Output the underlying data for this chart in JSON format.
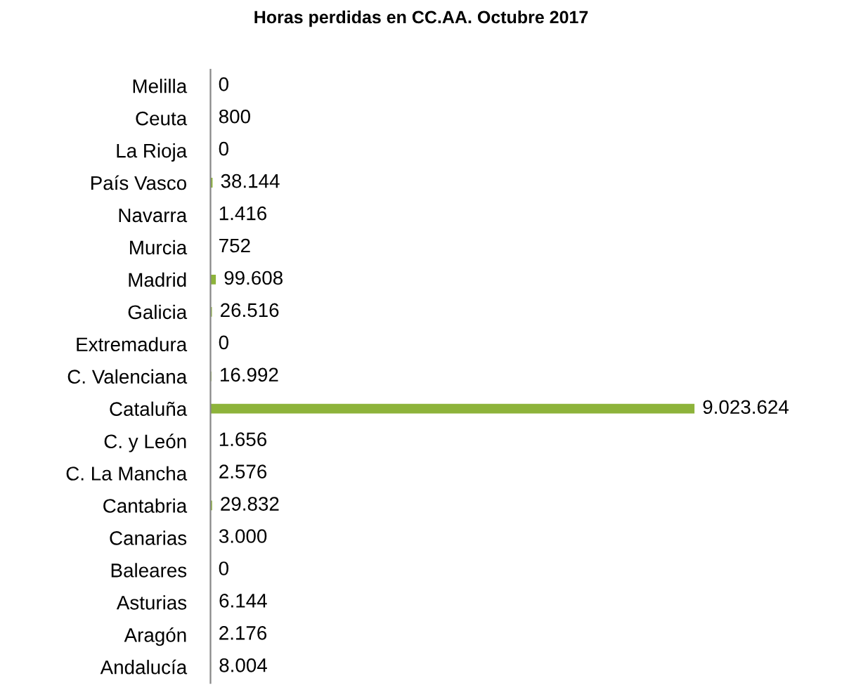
{
  "chart_data": {
    "type": "bar",
    "orientation": "horizontal",
    "title": "Horas perdidas en CC.AA. Octubre 2017",
    "categories": [
      "Melilla",
      "Ceuta",
      "La Rioja",
      "País Vasco",
      "Navarra",
      "Murcia",
      "Madrid",
      "Galicia",
      "Extremadura",
      "C. Valenciana",
      "Cataluña",
      "C. y León",
      "C. La Mancha",
      "Cantabria",
      "Canarias",
      "Baleares",
      "Asturias",
      "Aragón",
      "Andalucía"
    ],
    "values": [
      0,
      800,
      0,
      38144,
      1416,
      752,
      99608,
      26516,
      0,
      16992,
      9023624,
      1656,
      2576,
      29832,
      3000,
      0,
      6144,
      2176,
      8004
    ],
    "value_labels": [
      "0",
      "800",
      "0",
      "38.144",
      "1.416",
      "752",
      "99.608",
      "26.516",
      "0",
      "16.992",
      "9.023.624",
      "1.656",
      "2.576",
      "29.832",
      "3.000",
      "0",
      "6.144",
      "2.176",
      "8.004"
    ],
    "color": "#8db33a",
    "grid": false,
    "legend": false
  }
}
